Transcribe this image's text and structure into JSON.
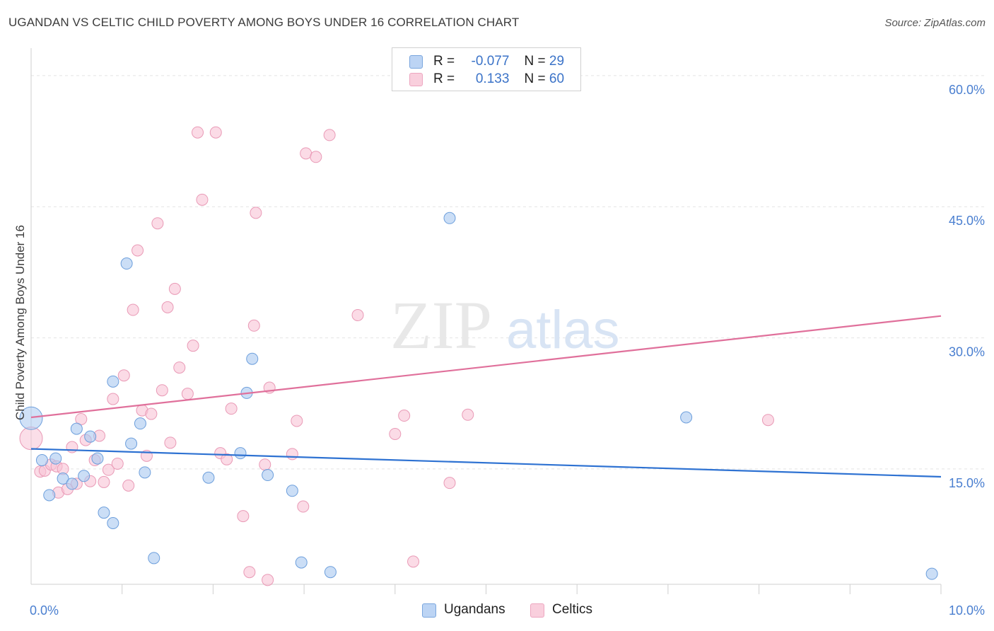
{
  "title": "UGANDAN VS CELTIC CHILD POVERTY AMONG BOYS UNDER 16 CORRELATION CHART",
  "source": "Source: ZipAtlas.com",
  "watermark": {
    "zip": "ZIP",
    "atlas": "atlas"
  },
  "legend": {
    "rows": [
      {
        "r_label": "R =",
        "r_value": "-0.077",
        "n_label": "N =",
        "n_value": "29"
      },
      {
        "r_label": "R =",
        "r_value": "0.133",
        "n_label": "N =",
        "n_value": "60"
      }
    ]
  },
  "chart_data": {
    "type": "scatter",
    "title": "UGANDAN VS CELTIC CHILD POVERTY AMONG BOYS UNDER 16 CORRELATION CHART",
    "xlabel": "",
    "ylabel": "Child Poverty Among Boys Under 16",
    "xlim": [
      0,
      10
    ],
    "ylim": [
      1.8,
      62.5
    ],
    "x_tick_labels": [
      "0.0%",
      "10.0%"
    ],
    "y_ticks": [
      15,
      30,
      45,
      60
    ],
    "y_tick_labels": [
      "15.0%",
      "30.0%",
      "45.0%",
      "60.0%"
    ],
    "grid": true,
    "legend_position": "top-center",
    "series": [
      {
        "name": "Ugandans",
        "color": "#a9c8f0",
        "edge": "#6d9fdc",
        "line_color": "#2e72d2",
        "trend": {
          "x": [
            0,
            10
          ],
          "y": [
            17.3,
            14.1
          ]
        },
        "points": [
          [
            0.0,
            20.8
          ],
          [
            0.12,
            16.0
          ],
          [
            0.2,
            12.0
          ],
          [
            0.27,
            16.2
          ],
          [
            0.35,
            13.9
          ],
          [
            0.45,
            13.3
          ],
          [
            0.5,
            19.6
          ],
          [
            0.58,
            14.2
          ],
          [
            0.65,
            18.7
          ],
          [
            0.73,
            16.2
          ],
          [
            0.8,
            10.0
          ],
          [
            0.9,
            8.8
          ],
          [
            0.9,
            25.0
          ],
          [
            1.05,
            38.5
          ],
          [
            1.1,
            17.9
          ],
          [
            1.2,
            20.2
          ],
          [
            1.25,
            14.6
          ],
          [
            1.35,
            4.8
          ],
          [
            1.95,
            14.0
          ],
          [
            2.3,
            16.8
          ],
          [
            2.37,
            23.7
          ],
          [
            2.43,
            27.6
          ],
          [
            2.6,
            14.3
          ],
          [
            2.87,
            12.5
          ],
          [
            2.97,
            4.3
          ],
          [
            3.29,
            3.2
          ],
          [
            4.6,
            43.7
          ],
          [
            7.2,
            20.9
          ],
          [
            9.9,
            3.0
          ]
        ]
      },
      {
        "name": "Celtics",
        "color": "#f8c3d6",
        "edge": "#e99ab6",
        "line_color": "#e0709b",
        "trend": {
          "x": [
            0,
            10
          ],
          "y": [
            20.9,
            32.5
          ]
        },
        "points": [
          [
            0.0,
            18.5
          ],
          [
            0.1,
            14.7
          ],
          [
            0.15,
            14.8
          ],
          [
            0.22,
            15.5
          ],
          [
            0.28,
            15.3
          ],
          [
            0.3,
            12.3
          ],
          [
            0.35,
            15.0
          ],
          [
            0.4,
            12.7
          ],
          [
            0.45,
            17.5
          ],
          [
            0.5,
            13.3
          ],
          [
            0.55,
            20.7
          ],
          [
            0.6,
            18.3
          ],
          [
            0.65,
            13.6
          ],
          [
            0.7,
            16.0
          ],
          [
            0.75,
            18.8
          ],
          [
            0.8,
            13.5
          ],
          [
            0.85,
            14.9
          ],
          [
            0.9,
            23.0
          ],
          [
            0.95,
            15.6
          ],
          [
            1.02,
            25.7
          ],
          [
            1.07,
            13.1
          ],
          [
            1.12,
            33.2
          ],
          [
            1.17,
            40.0
          ],
          [
            1.22,
            21.7
          ],
          [
            1.27,
            16.5
          ],
          [
            1.32,
            21.3
          ],
          [
            1.39,
            43.1
          ],
          [
            1.44,
            24.0
          ],
          [
            1.5,
            33.5
          ],
          [
            1.53,
            18.0
          ],
          [
            1.58,
            35.6
          ],
          [
            1.63,
            26.6
          ],
          [
            1.72,
            23.6
          ],
          [
            1.78,
            29.1
          ],
          [
            1.83,
            53.5
          ],
          [
            1.88,
            45.8
          ],
          [
            2.03,
            53.5
          ],
          [
            2.08,
            16.8
          ],
          [
            2.15,
            16.1
          ],
          [
            2.2,
            21.9
          ],
          [
            2.33,
            9.6
          ],
          [
            2.4,
            3.2
          ],
          [
            2.45,
            31.4
          ],
          [
            2.47,
            44.3
          ],
          [
            2.57,
            15.5
          ],
          [
            2.6,
            2.3
          ],
          [
            2.62,
            24.3
          ],
          [
            2.87,
            16.7
          ],
          [
            2.92,
            20.5
          ],
          [
            2.99,
            10.7
          ],
          [
            3.02,
            51.1
          ],
          [
            3.13,
            50.7
          ],
          [
            3.28,
            53.2
          ],
          [
            3.59,
            32.6
          ],
          [
            4.0,
            19.0
          ],
          [
            4.1,
            21.1
          ],
          [
            4.2,
            4.4
          ],
          [
            4.6,
            13.4
          ],
          [
            4.8,
            21.2
          ],
          [
            8.1,
            20.6
          ]
        ]
      }
    ]
  }
}
